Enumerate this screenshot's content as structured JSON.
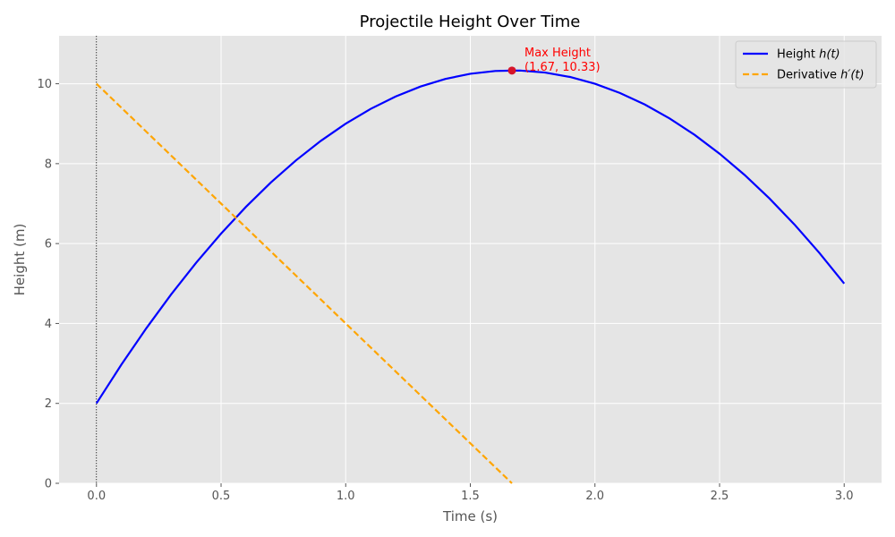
{
  "chart_data": {
    "type": "line",
    "title": "Projectile Height Over Time",
    "xlabel": "Time (s)",
    "ylabel": "Height (m)",
    "xlim": [
      -0.15,
      3.15
    ],
    "ylim": [
      0,
      11.2
    ],
    "xticks": [
      0.0,
      0.5,
      1.0,
      1.5,
      2.0,
      2.5,
      3.0
    ],
    "xtick_labels": [
      "0.0",
      "0.5",
      "1.0",
      "1.5",
      "2.0",
      "2.5",
      "3.0"
    ],
    "yticks": [
      0,
      2,
      4,
      6,
      8,
      10
    ],
    "ytick_labels": [
      "0",
      "2",
      "4",
      "6",
      "8",
      "10"
    ],
    "grid": true,
    "legend_position": "top-right",
    "series": [
      {
        "name": "Height h(t)",
        "legend_prefix": "Height ",
        "legend_math": "h(t)",
        "style": "solid",
        "color": "#0000ff",
        "x": [
          0.0,
          0.1,
          0.2,
          0.3,
          0.4,
          0.5,
          0.6,
          0.7,
          0.8,
          0.9,
          1.0,
          1.1,
          1.2,
          1.3,
          1.4,
          1.5,
          1.6,
          1.667,
          1.7,
          1.8,
          1.9,
          2.0,
          2.1,
          2.2,
          2.3,
          2.4,
          2.5,
          2.6,
          2.7,
          2.8,
          2.9,
          3.0
        ],
        "y": [
          2.0,
          2.97,
          3.88,
          4.73,
          5.52,
          6.25,
          6.92,
          7.53,
          8.08,
          8.57,
          9.0,
          9.37,
          9.68,
          9.93,
          10.12,
          10.25,
          10.32,
          10.33,
          10.33,
          10.28,
          10.17,
          10.0,
          9.77,
          9.48,
          9.13,
          8.72,
          8.25,
          7.72,
          7.13,
          6.48,
          5.77,
          5.0
        ]
      },
      {
        "name": "Derivative h′(t)",
        "legend_prefix": "Derivative ",
        "legend_math": "h′(t)",
        "style": "dashed",
        "color": "#ffa500",
        "x": [
          0.0,
          1.667
        ],
        "y": [
          10.0,
          0.0
        ]
      }
    ],
    "vertical_line": {
      "x": 0.0,
      "style": "dotted",
      "color": "#000000"
    },
    "annotation": {
      "label": "Max Height",
      "coords": "(1.67, 10.33)",
      "x": 1.667,
      "y": 10.33,
      "color": "#ff0000"
    },
    "colors": {
      "plot_background": "#e5e5e5",
      "grid": "#ffffff",
      "axis_text": "#555555"
    }
  }
}
